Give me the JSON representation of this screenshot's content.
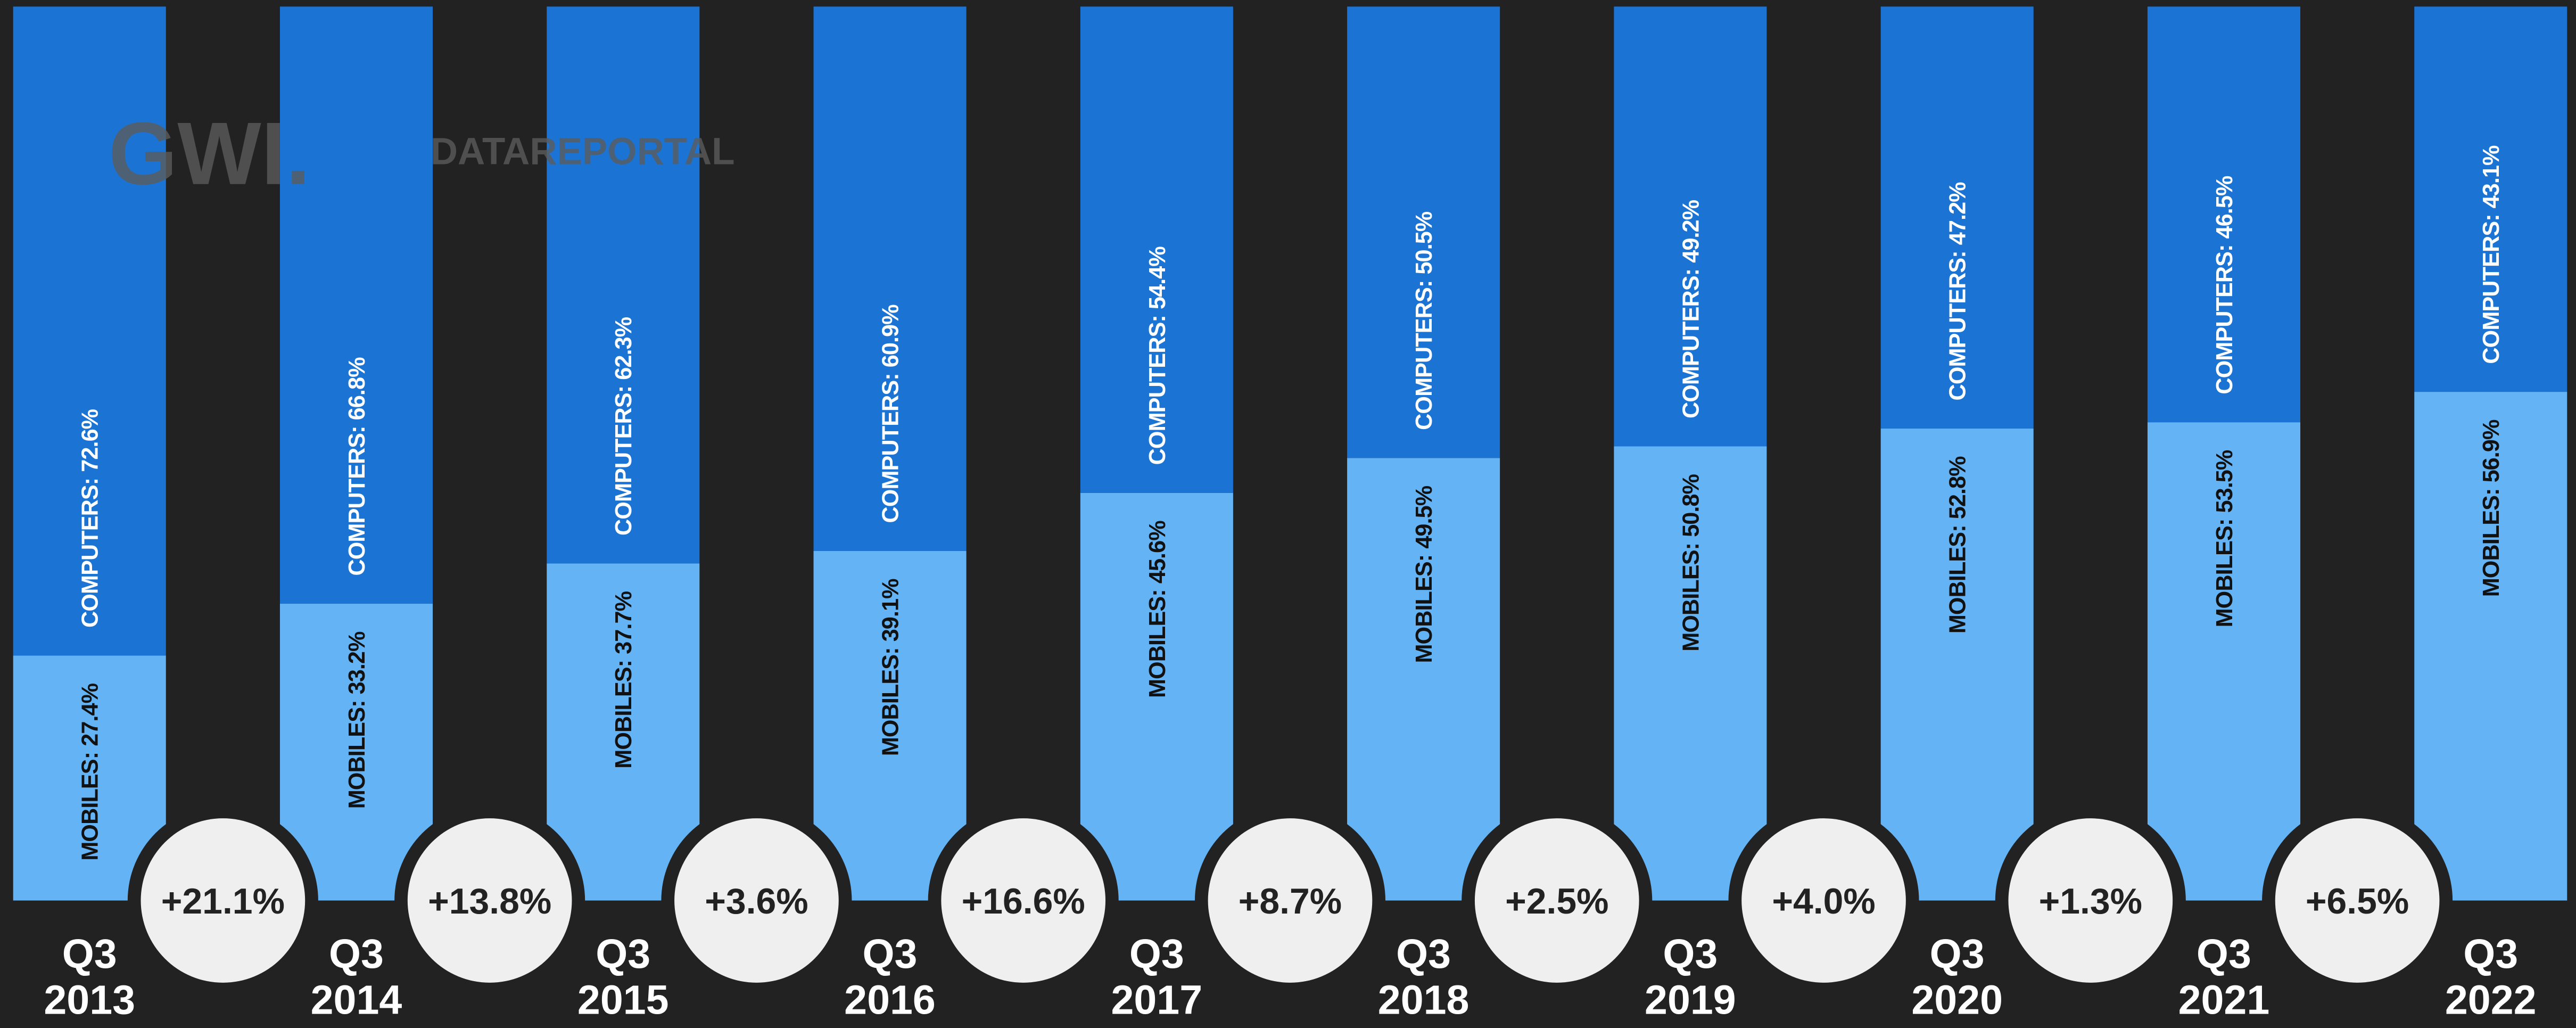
{
  "chart_data": {
    "type": "stacked_bar",
    "watermark": [
      "GWI.",
      "DATAREPORTAL"
    ],
    "categories": [
      "Q3 2013",
      "Q3 2014",
      "Q3 2015",
      "Q3 2016",
      "Q3 2017",
      "Q3 2018",
      "Q3 2019",
      "Q3 2020",
      "Q3 2021",
      "Q3 2022"
    ],
    "series": [
      {
        "color": "#63b3f5",
        "values": [
          27.4,
          33.2,
          37.7,
          39.1,
          45.6,
          49.5,
          50.8,
          52.8,
          53.5,
          56.9
        ],
        "value_labels": [
          "MOBILES: 27.4%",
          "MOBILES: 33.2%",
          "MOBILES: 37.7%",
          "MOBILES: 39.1%",
          "MOBILES: 45.6%",
          "MOBILES: 49.5%",
          "MOBILES: 50.8%",
          "MOBILES: 52.8%",
          "MOBILES: 53.5%",
          "MOBILES: 56.9%"
        ]
      },
      {
        "color": "#1b74d3",
        "values": [
          72.6,
          66.8,
          62.3,
          60.9,
          54.4,
          50.5,
          49.2,
          47.2,
          46.5,
          43.1
        ],
        "value_labels": [
          "COMPUTERS: 72.6%",
          "COMPUTERS: 66.8%",
          "COMPUTERS: 62.3%",
          "COMPUTERS: 60.9%",
          "COMPUTERS: 54.4%",
          "COMPUTERS: 50.5%",
          "COMPUTERS: 49.2%",
          "COMPUTERS: 47.2%",
          "COMPUTERS: 46.5%",
          "COMPUTERS: 43.1%"
        ]
      }
    ],
    "changes": {
      "values": [
        21.1,
        13.8,
        3.6,
        16.6,
        8.7,
        2.5,
        4.0,
        1.3,
        6.5
      ],
      "value_labels": [
        "+21.1%",
        "+13.8%",
        "+3.6%",
        "+16.6%",
        "+8.7%",
        "+2.5%",
        "+4.0%",
        "+1.3%",
        "+6.5%"
      ]
    },
    "ylim": [
      0,
      100
    ]
  }
}
